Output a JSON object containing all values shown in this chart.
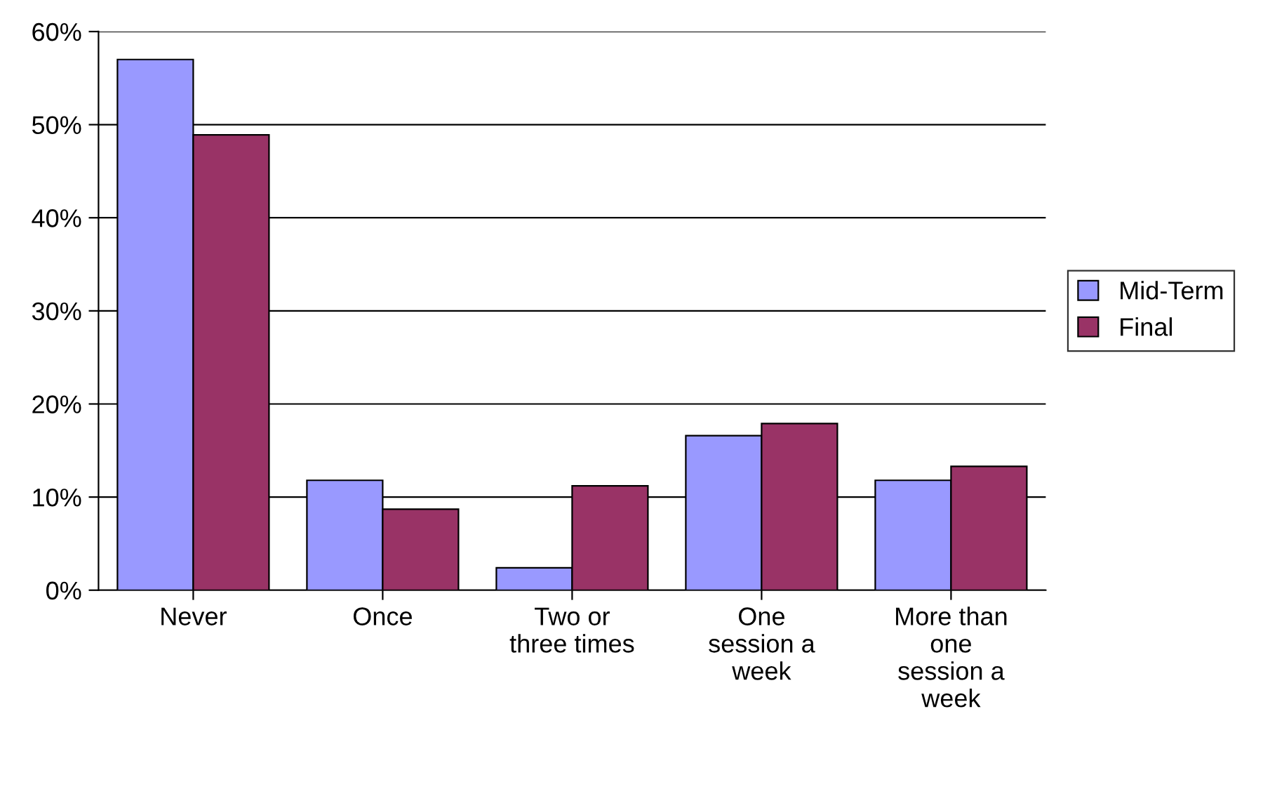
{
  "chart_data": {
    "type": "bar",
    "categories": [
      "Never",
      "Once",
      "Two or\nthree times",
      "One\nsession a\nweek",
      "More than\none\nsession a\nweek"
    ],
    "series": [
      {
        "name": "Mid-Term",
        "color": "#9999ff",
        "values": [
          57.0,
          11.8,
          2.4,
          16.6,
          11.8
        ]
      },
      {
        "name": "Final",
        "color": "#993366",
        "values": [
          48.9,
          8.7,
          11.2,
          17.9,
          13.3
        ]
      }
    ],
    "ylim": [
      0,
      60
    ],
    "yticks": [
      {
        "value": 0,
        "label": "0%"
      },
      {
        "value": 10,
        "label": "10%"
      },
      {
        "value": 20,
        "label": "20%"
      },
      {
        "value": 30,
        "label": "30%"
      },
      {
        "value": 40,
        "label": "40%"
      },
      {
        "value": 50,
        "label": "50%"
      },
      {
        "value": 60,
        "label": "60%"
      }
    ],
    "grid": "y",
    "legend": "right"
  }
}
